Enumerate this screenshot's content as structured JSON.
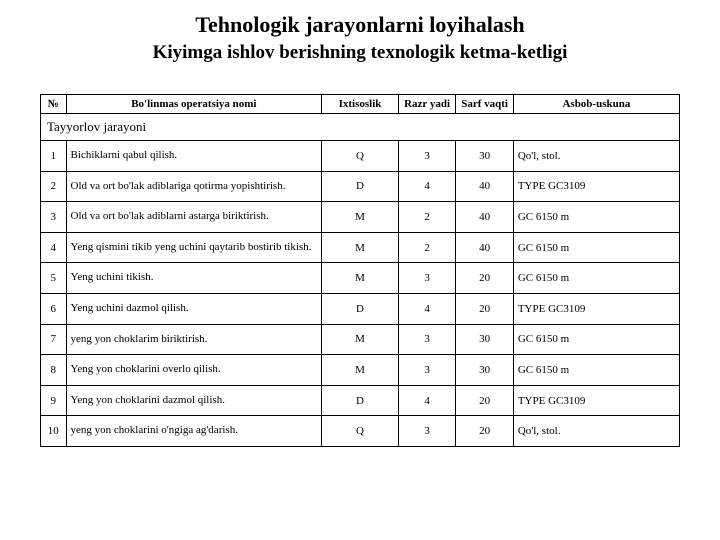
{
  "title": "Tehnologik jarayonlarni loyihalash",
  "subtitle": "Kiyimga ishlov berishning texnologik ketma-ketligi",
  "columns": {
    "num": "№",
    "operation": "Bo'linmas operatsiya nomi",
    "ixt": "Ixtisoslik",
    "razr": "Razr yadi",
    "sarf": "Sarf vaqti",
    "asbob": "Asbob-uskuna"
  },
  "section_label": "Tayyorlov jarayoni",
  "rows": [
    {
      "n": "1",
      "op": "Bichiklarni qabul qilish.",
      "ixt": "Q",
      "razr": "3",
      "sarf": "30",
      "asb": "Qo'l, stol."
    },
    {
      "n": "2",
      "op": "Old va ort bo'lak adiblariga qotirma yopishtirish.",
      "ixt": "D",
      "razr": "4",
      "sarf": "40",
      "asb": "TYPE GC3109"
    },
    {
      "n": "3",
      "op": "Old va ort bo'lak adiblarni astarga biriktirish.",
      "ixt": "M",
      "razr": "2",
      "sarf": "40",
      "asb": "GC 6150 m"
    },
    {
      "n": "4",
      "op": "Yeng qismini tikib yeng uchini qaytarib bostirib tikish.",
      "ixt": "M",
      "razr": "2",
      "sarf": "40",
      "asb": "GC 6150 m"
    },
    {
      "n": "5",
      "op": "Yeng uchini tikish.",
      "ixt": "M",
      "razr": "3",
      "sarf": "20",
      "asb": "GC 6150 m"
    },
    {
      "n": "6",
      "op": "Yeng uchini dazmol qilish.",
      "ixt": "D",
      "razr": "4",
      "sarf": "20",
      "asb": "TYPE GC3109"
    },
    {
      "n": "7",
      "op": "yeng yon choklarim biriktirish.",
      "ixt": "M",
      "razr": "3",
      "sarf": "30",
      "asb": "GC 6150 m"
    },
    {
      "n": "8",
      "op": "Yeng yon choklarini overlo qilish.",
      "ixt": "M",
      "razr": "3",
      "sarf": "30",
      "asb": "GC 6150 m"
    },
    {
      "n": "9",
      "op": "Yeng yon choklarini dazmol qilish.",
      "ixt": "D",
      "razr": "4",
      "sarf": "20",
      "asb": "TYPE GC3109"
    },
    {
      "n": "10",
      "op": "yeng yon choklarini o'ngiga ag'darish.",
      "ixt": "Q",
      "razr": "3",
      "sarf": "20",
      "asb": "Qo'l, stol."
    }
  ],
  "palette": {
    "border": "#000000",
    "background": "#ffffff",
    "text": "#000000"
  }
}
